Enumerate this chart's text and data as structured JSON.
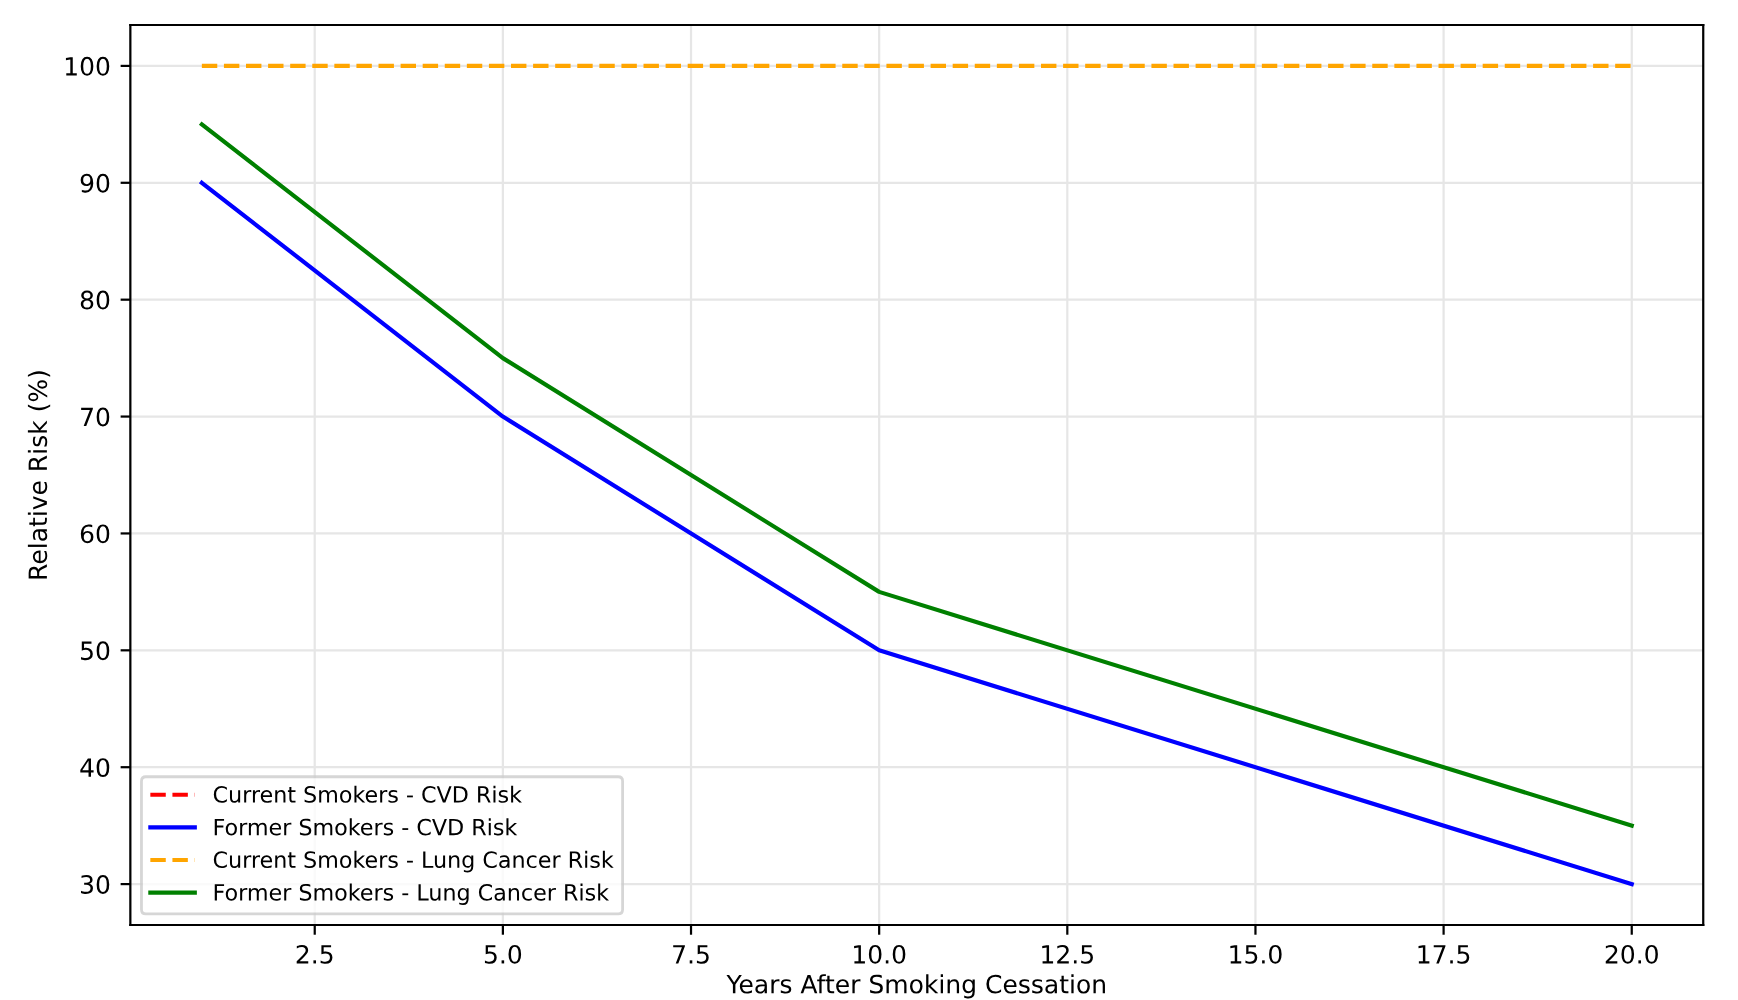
{
  "chart_data": {
    "type": "line",
    "xlabel": "Years After Smoking Cessation",
    "ylabel": "Relative Risk (%)",
    "x": [
      1,
      5,
      10,
      20
    ],
    "series": [
      {
        "name": "Current Smokers - CVD Risk",
        "color": "#ff0000",
        "values": [
          null,
          null,
          null,
          null
        ],
        "line_style": "dashed"
      },
      {
        "name": "Former Smokers - CVD Risk",
        "color": "#0000ff",
        "values": [
          90,
          70,
          50,
          30
        ],
        "line_style": "solid"
      },
      {
        "name": "Current Smokers - Lung Cancer Risk",
        "color": "#ffa500",
        "values": [
          100,
          100,
          100,
          100
        ],
        "line_style": "dashed"
      },
      {
        "name": "Former Smokers - Lung Cancer Risk",
        "color": "#008000",
        "values": [
          95,
          75,
          55,
          35
        ],
        "line_style": "solid"
      }
    ],
    "xlim": [
      0.05,
      20.95
    ],
    "ylim": [
      26.5,
      103.5
    ],
    "xticks": [
      {
        "value": 2.5,
        "label": "2.5"
      },
      {
        "value": 5,
        "label": "5.0"
      },
      {
        "value": 7.5,
        "label": "7.5"
      },
      {
        "value": 10,
        "label": "10.0"
      },
      {
        "value": 12.5,
        "label": "12.5"
      },
      {
        "value": 15,
        "label": "15.0"
      },
      {
        "value": 17.5,
        "label": "17.5"
      },
      {
        "value": 20,
        "label": "20.0"
      }
    ],
    "yticks": [
      30,
      40,
      50,
      60,
      70,
      80,
      90,
      100
    ],
    "grid": true,
    "legend": "bottom left"
  }
}
